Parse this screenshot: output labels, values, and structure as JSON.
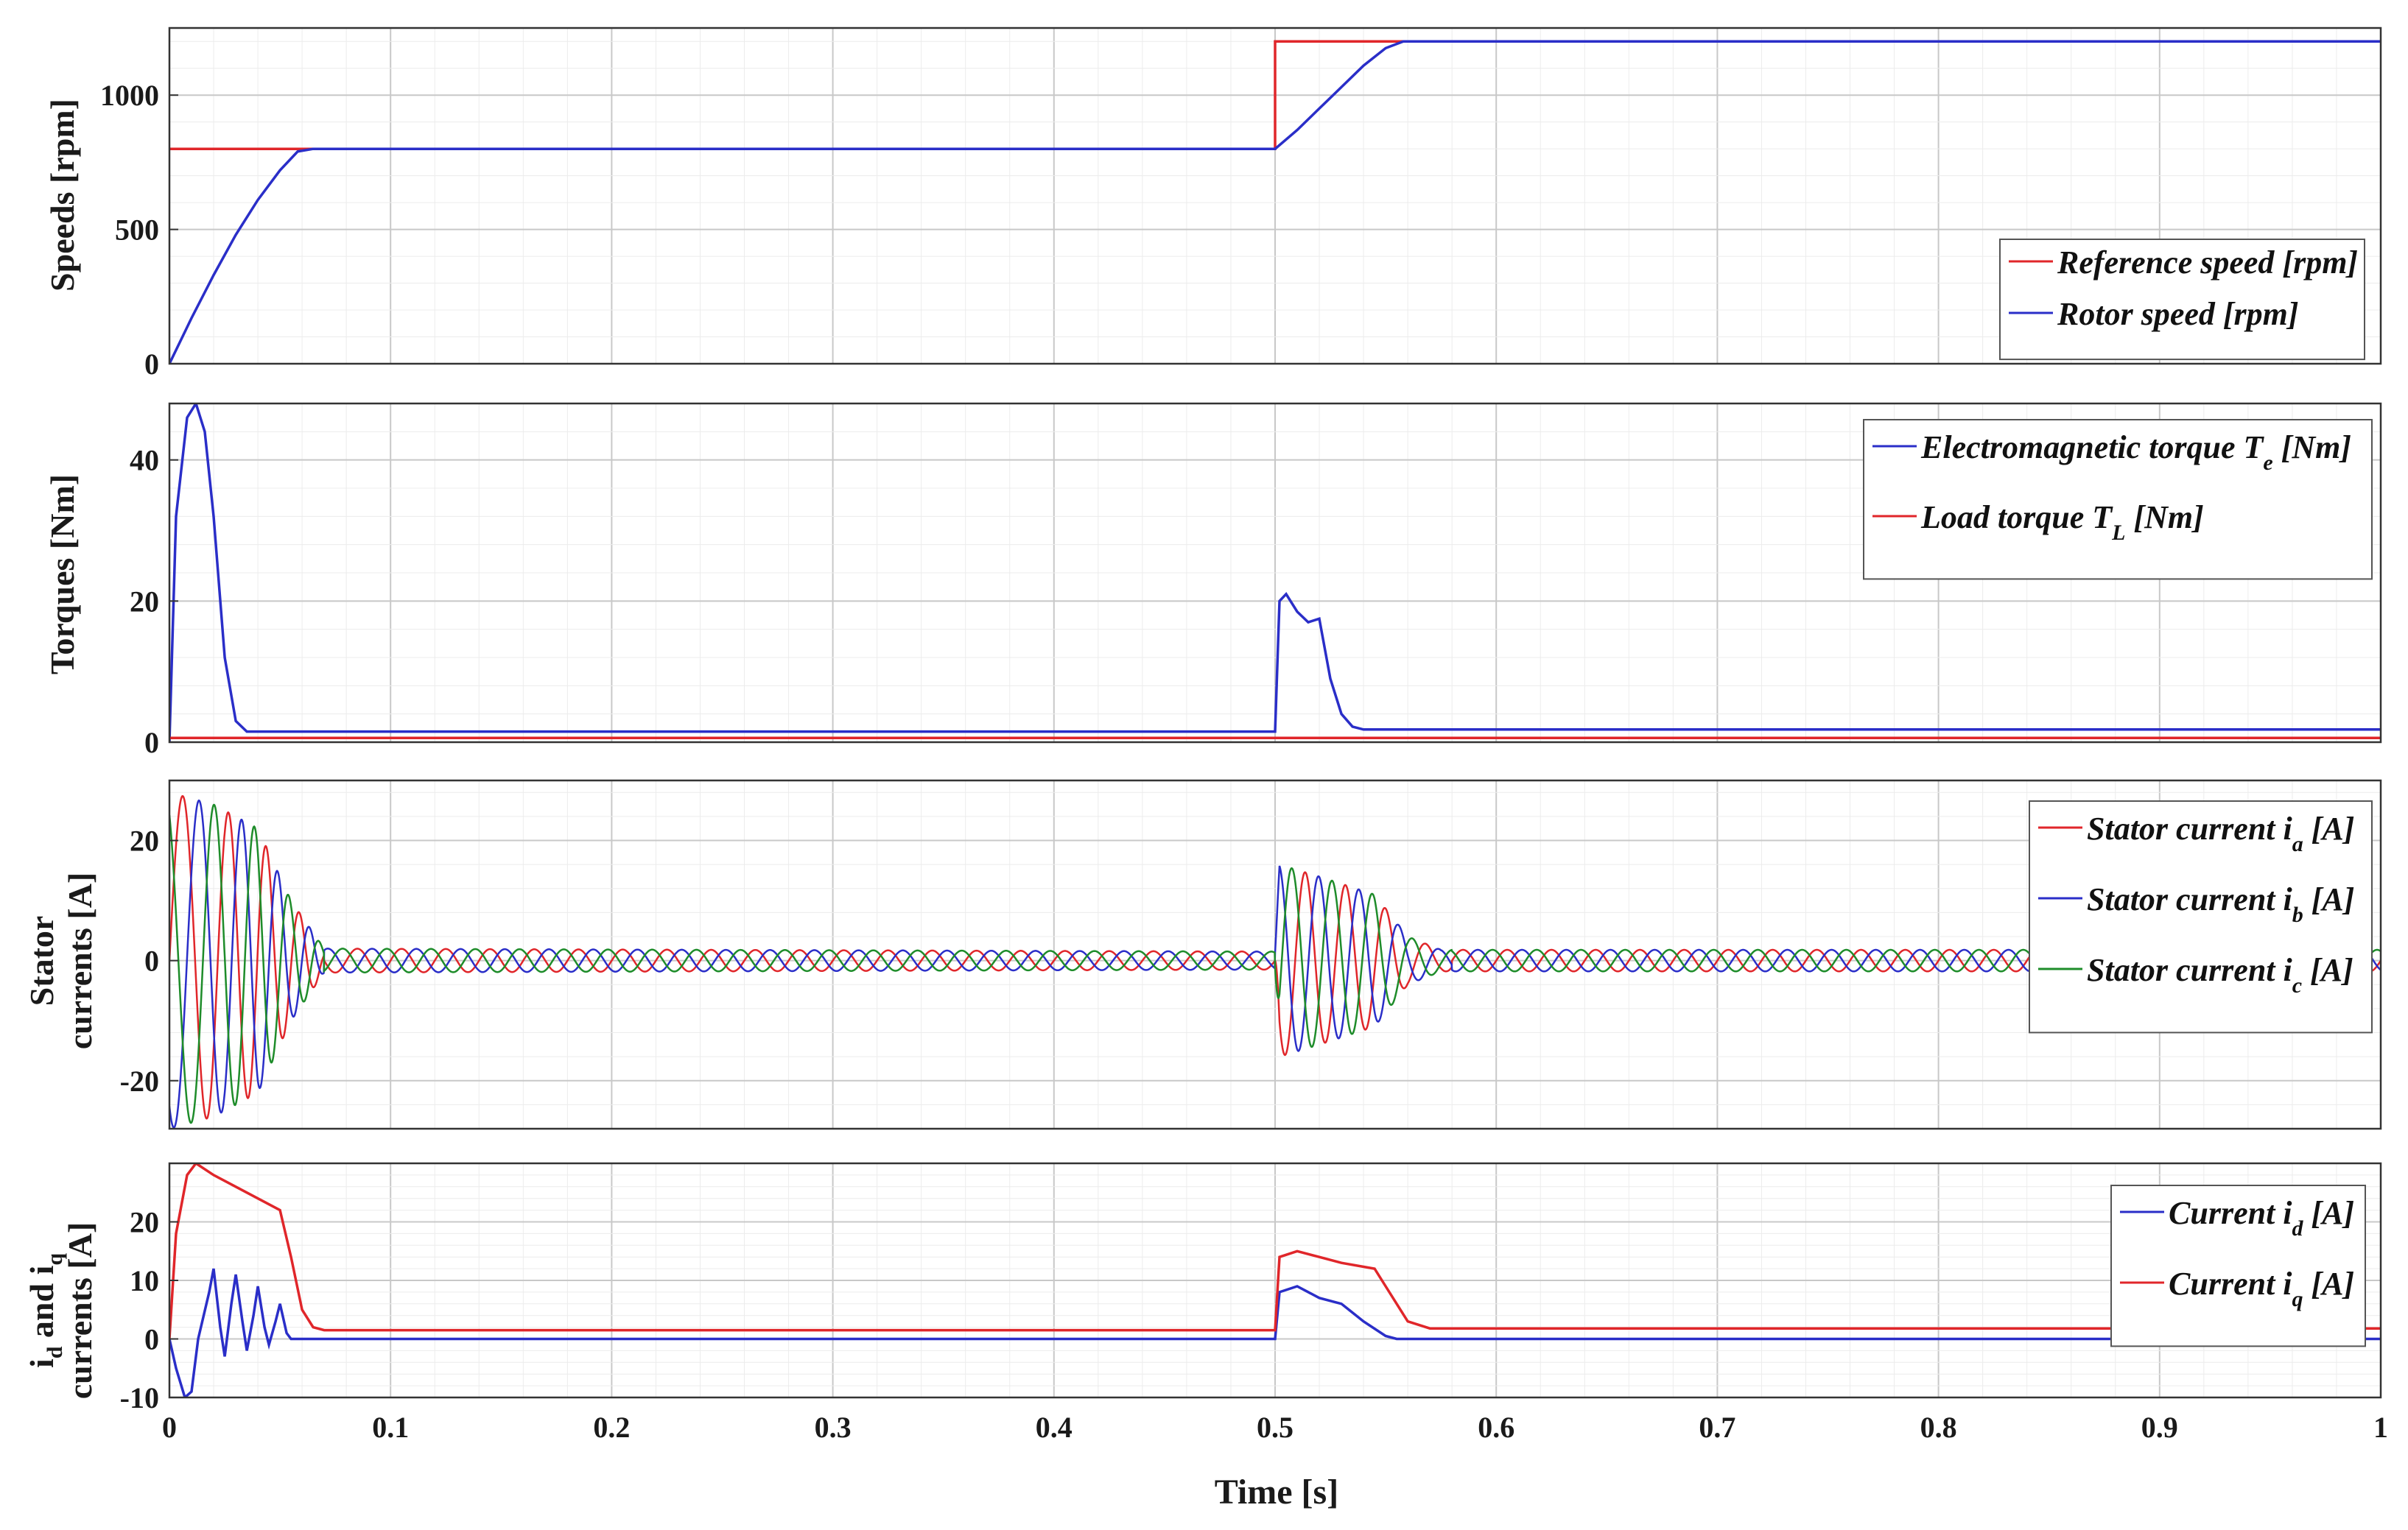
{
  "chart_data": [
    {
      "type": "line",
      "ylabel": "Speeds [rpm]",
      "xlim": [
        0,
        1
      ],
      "ylim": [
        0,
        1250
      ],
      "yticks": [
        0,
        500,
        1000
      ],
      "xtick_labels": [],
      "legend_position": "bottom-right",
      "series": [
        {
          "name": "Reference speed [rpm]",
          "color": "#e0262a",
          "points": [
            [
              0,
              800
            ],
            [
              0.5,
              800
            ],
            [
              0.5,
              1200
            ],
            [
              1.0,
              1200
            ]
          ]
        },
        {
          "name": "Rotor speed [rpm]",
          "color": "#2a2ec8",
          "points": [
            [
              0,
              0
            ],
            [
              0.01,
              170
            ],
            [
              0.02,
              330
            ],
            [
              0.03,
              480
            ],
            [
              0.04,
              610
            ],
            [
              0.05,
              720
            ],
            [
              0.058,
              790
            ],
            [
              0.065,
              800
            ],
            [
              0.5,
              800
            ],
            [
              0.51,
              870
            ],
            [
              0.52,
              950
            ],
            [
              0.53,
              1030
            ],
            [
              0.54,
              1110
            ],
            [
              0.55,
              1175
            ],
            [
              0.558,
              1200
            ],
            [
              1.0,
              1200
            ]
          ]
        }
      ]
    },
    {
      "type": "line",
      "ylabel": "Torques [Nm]",
      "xlim": [
        0,
        1
      ],
      "ylim": [
        0,
        48
      ],
      "yticks": [
        0,
        20,
        40
      ],
      "xtick_labels": [],
      "legend_position": "top-right",
      "series": [
        {
          "name": "Electromagnetic torque",
          "subscript": "e",
          "suffix": "[Nm]",
          "color": "#2a2ec8",
          "points": [
            [
              0,
              0
            ],
            [
              0.003,
              32
            ],
            [
              0.008,
              46
            ],
            [
              0.012,
              48
            ],
            [
              0.016,
              44
            ],
            [
              0.02,
              32
            ],
            [
              0.025,
              12
            ],
            [
              0.03,
              3
            ],
            [
              0.035,
              1.5
            ],
            [
              0.5,
              1.5
            ],
            [
              0.502,
              20
            ],
            [
              0.505,
              21
            ],
            [
              0.51,
              18.5
            ],
            [
              0.515,
              17
            ],
            [
              0.52,
              17.5
            ],
            [
              0.525,
              9
            ],
            [
              0.53,
              4
            ],
            [
              0.535,
              2.2
            ],
            [
              0.54,
              1.8
            ],
            [
              1.0,
              1.8
            ]
          ]
        },
        {
          "name": "Load torque",
          "subscript": "L",
          "suffix": "[Nm]",
          "color": "#e0262a",
          "points": [
            [
              0,
              0.6
            ],
            [
              1.0,
              0.6
            ]
          ]
        }
      ]
    },
    {
      "type": "line",
      "ylabel": "Stator currents [A]",
      "xlim": [
        0,
        1
      ],
      "ylim": [
        -28,
        30
      ],
      "yticks": [
        -20,
        0,
        20
      ],
      "xtick_labels": [],
      "legend_position": "top-right",
      "series": [
        {
          "name": "Stator current",
          "subscript": "a",
          "suffix": "[A]",
          "color": "#e0262a",
          "phase": 0
        },
        {
          "name": "Stator current",
          "subscript": "b",
          "suffix": "[A]",
          "color": "#2a2ec8",
          "phase": -2.0944
        },
        {
          "name": "Stator current",
          "subscript": "c",
          "suffix": "[A]",
          "color": "#1e8c2a",
          "phase": 2.0944
        }
      ],
      "envelope": [
        [
          0,
          28
        ],
        [
          0.02,
          26
        ],
        [
          0.04,
          22
        ],
        [
          0.055,
          10
        ],
        [
          0.07,
          2
        ],
        [
          0.5,
          1.5
        ],
        [
          0.502,
          16
        ],
        [
          0.52,
          14
        ],
        [
          0.545,
          11
        ],
        [
          0.56,
          4
        ],
        [
          0.575,
          1.8
        ],
        [
          1.0,
          1.8
        ]
      ]
    },
    {
      "type": "line",
      "ylabel_html": "i_d and i_q currents [A]",
      "ylabel_parts": {
        "l1": "i",
        "l1sub": "d",
        "l1b": " and i",
        "l1bsub": "q",
        "l2": "currents [A]"
      },
      "xlabel": "Time [s]",
      "xlim": [
        0,
        1
      ],
      "ylim": [
        -10,
        30
      ],
      "yticks": [
        -10,
        0,
        10,
        20
      ],
      "xticks": [
        0,
        0.1,
        0.2,
        0.3,
        0.4,
        0.5,
        0.6,
        0.7,
        0.8,
        0.9,
        1
      ],
      "xtick_labels": [
        "0",
        "0.1",
        "0.2",
        "0.3",
        "0.4",
        "0.5",
        "0.6",
        "0.7",
        "0.8",
        "0.9",
        "1"
      ],
      "legend_position": "top-right",
      "series": [
        {
          "name": "Current",
          "subscript": "d",
          "suffix": "[A]",
          "color": "#2a2ec8",
          "points": [
            [
              0,
              0
            ],
            [
              0.003,
              -5
            ],
            [
              0.007,
              -10
            ],
            [
              0.01,
              -9
            ],
            [
              0.013,
              0
            ],
            [
              0.018,
              8
            ],
            [
              0.02,
              12
            ],
            [
              0.023,
              2
            ],
            [
              0.025,
              -3
            ],
            [
              0.028,
              6
            ],
            [
              0.03,
              11
            ],
            [
              0.033,
              3
            ],
            [
              0.035,
              -2
            ],
            [
              0.038,
              4
            ],
            [
              0.04,
              9
            ],
            [
              0.043,
              2
            ],
            [
              0.045,
              -1
            ],
            [
              0.048,
              3
            ],
            [
              0.05,
              6
            ],
            [
              0.053,
              1
            ],
            [
              0.055,
              0
            ],
            [
              0.5,
              0
            ],
            [
              0.502,
              8
            ],
            [
              0.51,
              9
            ],
            [
              0.52,
              7
            ],
            [
              0.53,
              6
            ],
            [
              0.54,
              3
            ],
            [
              0.55,
              0.5
            ],
            [
              0.555,
              0
            ],
            [
              1.0,
              0
            ]
          ]
        },
        {
          "name": "Current",
          "subscript": "q",
          "suffix": "[A]",
          "color": "#e0262a",
          "points": [
            [
              0,
              0
            ],
            [
              0.003,
              18
            ],
            [
              0.008,
              28
            ],
            [
              0.012,
              30
            ],
            [
              0.02,
              28
            ],
            [
              0.03,
              26
            ],
            [
              0.04,
              24
            ],
            [
              0.05,
              22
            ],
            [
              0.055,
              14
            ],
            [
              0.06,
              5
            ],
            [
              0.065,
              2
            ],
            [
              0.07,
              1.5
            ],
            [
              0.5,
              1.5
            ],
            [
              0.502,
              14
            ],
            [
              0.51,
              15
            ],
            [
              0.52,
              14
            ],
            [
              0.53,
              13
            ],
            [
              0.545,
              12
            ],
            [
              0.55,
              9
            ],
            [
              0.56,
              3
            ],
            [
              0.57,
              1.8
            ],
            [
              1.0,
              1.8
            ]
          ]
        }
      ]
    }
  ]
}
